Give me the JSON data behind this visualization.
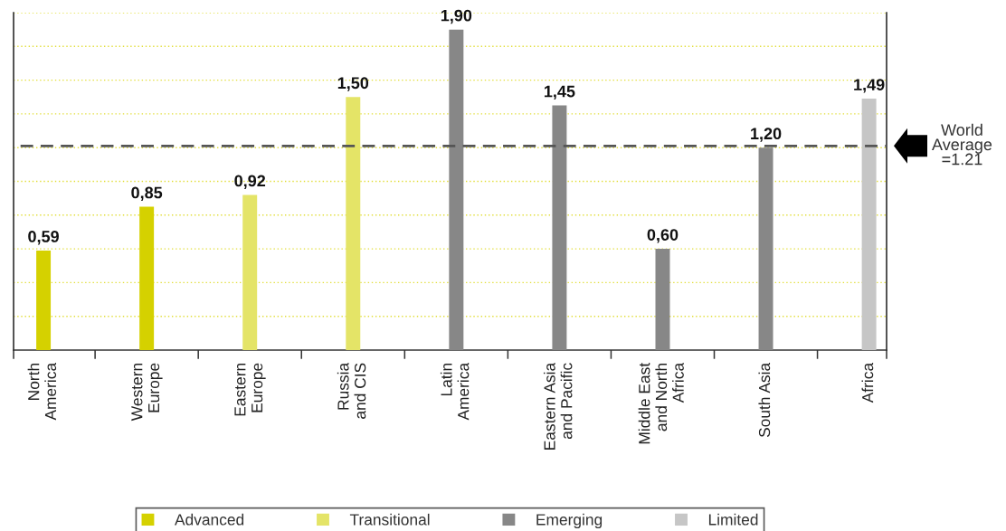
{
  "chart_data": {
    "type": "bar",
    "categories": [
      "North\nAmerica",
      "Western\nEurope",
      "Eastern\nEurope",
      "Russia\nand CIS",
      "Latin\nAmerica",
      "Eastern Asia\nand Pacific",
      "Middle East\nand North\nAfrica",
      "South Asia",
      "Africa"
    ],
    "stacked": true,
    "series": [
      {
        "name": "Advanced",
        "color": "#d5d100",
        "values": [
          0.59,
          0.85,
          null,
          null,
          null,
          null,
          null,
          null,
          null
        ],
        "value_labels": [
          "0,59",
          "0,85",
          null,
          null,
          null,
          null,
          null,
          null,
          null
        ]
      },
      {
        "name": "Transitional",
        "color": "#e4e467",
        "values": [
          null,
          null,
          0.92,
          1.5,
          null,
          null,
          null,
          null,
          null
        ],
        "value_labels": [
          null,
          null,
          "0,92",
          "1,50",
          null,
          null,
          null,
          null,
          null
        ]
      },
      {
        "name": "Emerging",
        "color": "#878787",
        "values": [
          null,
          null,
          null,
          null,
          1.9,
          1.45,
          0.6,
          1.2,
          null
        ],
        "value_labels": [
          null,
          null,
          null,
          null,
          "1,90",
          "1,45",
          "0,60",
          "1,20",
          null
        ]
      },
      {
        "name": "Limited",
        "color": "#c6c6c6",
        "values": [
          null,
          null,
          null,
          null,
          null,
          null,
          null,
          null,
          1.49
        ],
        "value_labels": [
          null,
          null,
          null,
          null,
          null,
          null,
          null,
          null,
          "1,49"
        ]
      }
    ],
    "ylim": [
      0,
      2.0
    ],
    "yticks": [
      {
        "value": 0.2,
        "label": null
      },
      {
        "value": 0.4,
        "label": null
      },
      {
        "value": 0.6,
        "label": null
      },
      {
        "value": 0.8,
        "label": null
      },
      {
        "value": 1.0,
        "label": null
      },
      {
        "value": 1.2,
        "label": null
      },
      {
        "value": 1.4,
        "label": null
      },
      {
        "value": 1.6,
        "label": null
      },
      {
        "value": 1.8,
        "label": null
      },
      {
        "value": 2.0,
        "label": null
      }
    ],
    "tick_labels": "x",
    "grid": "y",
    "legend": "bottom",
    "ref_lines": [
      {
        "axis": "y",
        "value": 1.21,
        "label": "World\nAverage\n=1.21",
        "color": "#555555",
        "line_style": "dashed"
      }
    ]
  }
}
